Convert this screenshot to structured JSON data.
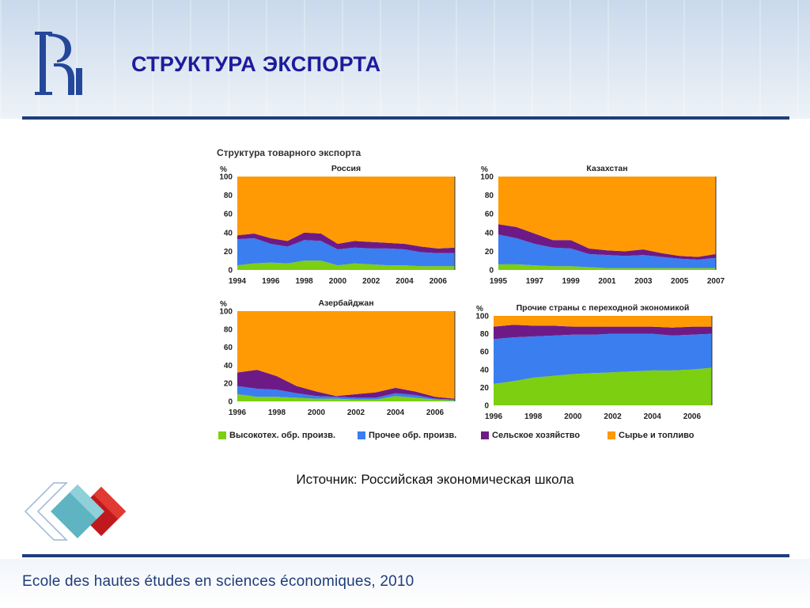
{
  "page": {
    "title": "СТРУКТУРА ЭКСПОРТА",
    "source": "Источник: Российская экономическая школа",
    "footer": "Ecole des hautes études en sciences économiques, 2010"
  },
  "colors": {
    "high_tech": "#7ccf11",
    "other_manuf": "#3a7eef",
    "agriculture": "#6e1a86",
    "raw_fuel": "#ff9a05",
    "title": "#1c1c9c",
    "brand": "#1f3d7a"
  },
  "chart_group_title": "Структура товарного экспорта",
  "legend": [
    {
      "key": "high_tech",
      "label": "Высокотех. обр. произв."
    },
    {
      "key": "other_manuf",
      "label": "Прочее обр. произв."
    },
    {
      "key": "agriculture",
      "label": "Сельское хозяйство"
    },
    {
      "key": "raw_fuel",
      "label": "Сырье и топливо"
    }
  ],
  "chart_data": [
    {
      "type": "area",
      "stacked": true,
      "title": "Россия",
      "ylabel": "%",
      "ylim": [
        0,
        100
      ],
      "yticks": [
        0,
        20,
        40,
        60,
        80,
        100
      ],
      "x": [
        1994,
        1995,
        1996,
        1997,
        1998,
        1999,
        2000,
        2001,
        2002,
        2003,
        2004,
        2005,
        2006,
        2007
      ],
      "xticks": [
        1994,
        1996,
        1998,
        2000,
        2002,
        2004,
        2006
      ],
      "series": [
        {
          "name": "Высокотех. обр. произв.",
          "key": "high_tech",
          "values": [
            5,
            7,
            8,
            7,
            10,
            10,
            5,
            7,
            6,
            5,
            5,
            4,
            4,
            4
          ]
        },
        {
          "name": "Прочее обр. произв.",
          "key": "other_manuf",
          "values": [
            28,
            27,
            20,
            18,
            22,
            21,
            17,
            17,
            17,
            18,
            17,
            15,
            14,
            14
          ]
        },
        {
          "name": "Сельское хозяйство",
          "key": "agriculture",
          "values": [
            4,
            5,
            6,
            6,
            8,
            8,
            6,
            7,
            7,
            6,
            6,
            6,
            5,
            6
          ]
        },
        {
          "name": "Сырье и топливо",
          "key": "raw_fuel",
          "values": [
            63,
            61,
            66,
            69,
            60,
            61,
            72,
            69,
            70,
            71,
            72,
            75,
            77,
            76
          ]
        }
      ]
    },
    {
      "type": "area",
      "stacked": true,
      "title": "Казахстан",
      "ylabel": "%",
      "ylim": [
        0,
        100
      ],
      "yticks": [
        0,
        20,
        40,
        60,
        80,
        100
      ],
      "x": [
        1995,
        1996,
        1997,
        1998,
        1999,
        2000,
        2001,
        2002,
        2003,
        2004,
        2005,
        2006,
        2007
      ],
      "xticks": [
        1995,
        1997,
        1999,
        2001,
        2003,
        2005,
        2007
      ],
      "series": [
        {
          "name": "Высокотех. обр. произв.",
          "key": "high_tech",
          "values": [
            6,
            6,
            5,
            4,
            4,
            3,
            2,
            2,
            2,
            2,
            2,
            2,
            2
          ]
        },
        {
          "name": "Прочее обр. произв.",
          "key": "other_manuf",
          "values": [
            32,
            28,
            23,
            20,
            19,
            14,
            14,
            13,
            14,
            12,
            10,
            9,
            11
          ]
        },
        {
          "name": "Сельское хозяйство",
          "key": "agriculture",
          "values": [
            11,
            12,
            11,
            8,
            9,
            6,
            5,
            5,
            6,
            4,
            3,
            3,
            4
          ]
        },
        {
          "name": "Сырье и топливо",
          "key": "raw_fuel",
          "values": [
            51,
            54,
            61,
            68,
            68,
            77,
            79,
            80,
            78,
            82,
            85,
            86,
            83
          ]
        }
      ]
    },
    {
      "type": "area",
      "stacked": true,
      "title": "Азербайджан",
      "ylabel": "%",
      "ylim": [
        0,
        100
      ],
      "yticks": [
        0,
        20,
        40,
        60,
        80,
        100
      ],
      "x": [
        1996,
        1997,
        1998,
        1999,
        2000,
        2001,
        2002,
        2003,
        2004,
        2005,
        2006,
        2007
      ],
      "xticks": [
        1996,
        1998,
        2000,
        2002,
        2004,
        2006
      ],
      "series": [
        {
          "name": "Высокотех. обр. произв.",
          "key": "high_tech",
          "values": [
            8,
            5,
            5,
            4,
            3,
            3,
            2,
            2,
            6,
            4,
            2,
            1
          ]
        },
        {
          "name": "Прочее обр. произв.",
          "key": "other_manuf",
          "values": [
            9,
            9,
            8,
            5,
            3,
            2,
            2,
            2,
            3,
            3,
            1,
            1
          ]
        },
        {
          "name": "Сельское хозяйство",
          "key": "agriculture",
          "values": [
            15,
            21,
            15,
            8,
            5,
            1,
            4,
            6,
            6,
            4,
            2,
            1
          ]
        },
        {
          "name": "Сырье и топливо",
          "key": "raw_fuel",
          "values": [
            68,
            65,
            72,
            83,
            89,
            94,
            92,
            90,
            85,
            89,
            95,
            97
          ]
        }
      ]
    },
    {
      "type": "area",
      "stacked": true,
      "title": "Прочие страны с переходной экономикой",
      "ylabel": "%",
      "ylim": [
        0,
        100
      ],
      "yticks": [
        0,
        20,
        40,
        60,
        80,
        100
      ],
      "x": [
        1996,
        1997,
        1998,
        1999,
        2000,
        2001,
        2002,
        2003,
        2004,
        2005,
        2006,
        2007
      ],
      "xticks": [
        1996,
        1998,
        2000,
        2002,
        2004,
        2006
      ],
      "series": [
        {
          "name": "Высокотех. обр. произв.",
          "key": "high_tech",
          "values": [
            24,
            27,
            31,
            33,
            35,
            36,
            37,
            38,
            39,
            39,
            40,
            42
          ]
        },
        {
          "name": "Прочее обр. произв.",
          "key": "other_manuf",
          "values": [
            50,
            49,
            46,
            45,
            44,
            43,
            43,
            42,
            41,
            39,
            39,
            38
          ]
        },
        {
          "name": "Сельское хозяйство",
          "key": "agriculture",
          "values": [
            14,
            14,
            12,
            11,
            9,
            9,
            8,
            8,
            8,
            9,
            9,
            8
          ]
        },
        {
          "name": "Сырье и топливо",
          "key": "raw_fuel",
          "values": [
            12,
            10,
            11,
            11,
            12,
            12,
            12,
            12,
            12,
            13,
            12,
            12
          ]
        }
      ]
    }
  ]
}
